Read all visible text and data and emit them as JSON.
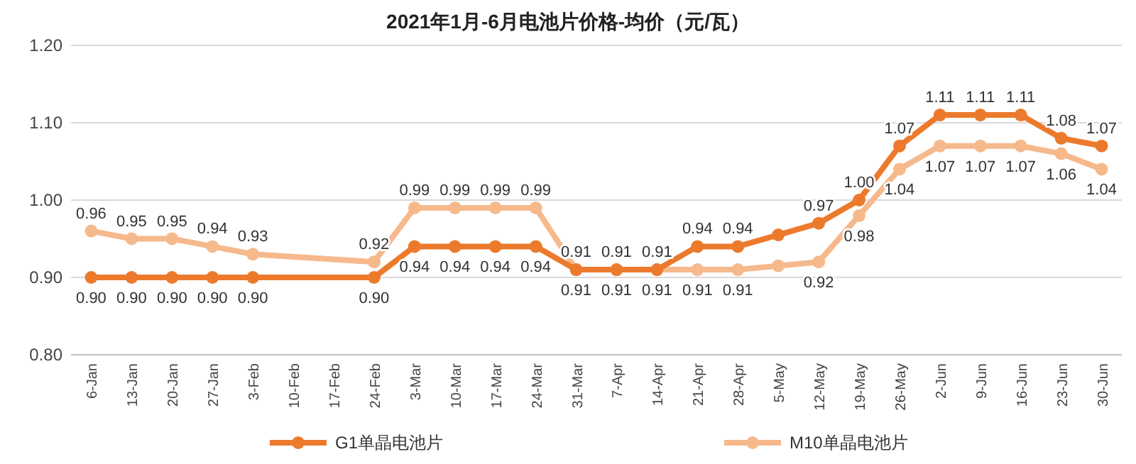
{
  "chart_data": {
    "type": "line",
    "title": "2021年1月-6月电池片价格-均价（元/瓦）",
    "categories": [
      "6-Jan",
      "13-Jan",
      "20-Jan",
      "27-Jan",
      "3-Feb",
      "10-Feb",
      "17-Feb",
      "24-Feb",
      "3-Mar",
      "10-Mar",
      "17-Mar",
      "24-Mar",
      "31-Mar",
      "7-Apr",
      "14-Apr",
      "21-Apr",
      "28-Apr",
      "5-May",
      "12-May",
      "19-May",
      "26-May",
      "2-Jun",
      "9-Jun",
      "16-Jun",
      "23-Jun",
      "30-Jun"
    ],
    "series": [
      {
        "name": "G1单晶电池片",
        "color": "#ec7a2c",
        "values": [
          0.9,
          0.9,
          0.9,
          0.9,
          0.9,
          null,
          null,
          0.9,
          0.94,
          0.94,
          0.94,
          0.94,
          0.91,
          0.91,
          0.91,
          0.94,
          0.94,
          0.955,
          0.97,
          1.0,
          1.07,
          1.11,
          1.11,
          1.11,
          1.08,
          1.07
        ],
        "value_labels": [
          "0.90",
          "0.90",
          "0.90",
          "0.90",
          "0.90",
          null,
          null,
          "0.90",
          "0.94",
          "0.94",
          "0.94",
          "0.94",
          "0.91",
          "0.91",
          "0.91",
          "0.94",
          "0.94",
          null,
          "0.97",
          "1.00",
          "1.07",
          "1.11",
          "1.11",
          "1.11",
          "1.08",
          "1.07"
        ]
      },
      {
        "name": "M10单晶电池片",
        "color": "#f6b98c",
        "values": [
          0.96,
          0.95,
          0.95,
          0.94,
          0.93,
          null,
          null,
          0.92,
          0.99,
          0.99,
          0.99,
          0.99,
          0.91,
          0.91,
          0.91,
          0.91,
          0.91,
          0.915,
          0.92,
          0.98,
          1.04,
          1.07,
          1.07,
          1.07,
          1.06,
          1.04
        ],
        "value_labels": [
          "0.96",
          "0.95",
          "0.95",
          "0.94",
          "0.93",
          null,
          null,
          "0.92",
          "0.99",
          "0.99",
          "0.99",
          "0.99",
          "0.91",
          "0.91",
          "0.91",
          "0.91",
          "0.91",
          null,
          "0.92",
          "0.98",
          "1.04",
          "1.07",
          "1.07",
          "1.07",
          "1.06",
          "1.04"
        ]
      }
    ],
    "ylim": [
      0.8,
      1.2
    ],
    "yticks": [
      {
        "value": 0.8,
        "label": "0.80"
      },
      {
        "value": 0.9,
        "label": "0.90"
      },
      {
        "value": 1.0,
        "label": "1.00"
      },
      {
        "value": 1.1,
        "label": "1.10"
      },
      {
        "value": 1.2,
        "label": "1.20"
      }
    ],
    "grid": "y",
    "legend": "bottom",
    "marker": "circle",
    "line_style": "solid"
  }
}
